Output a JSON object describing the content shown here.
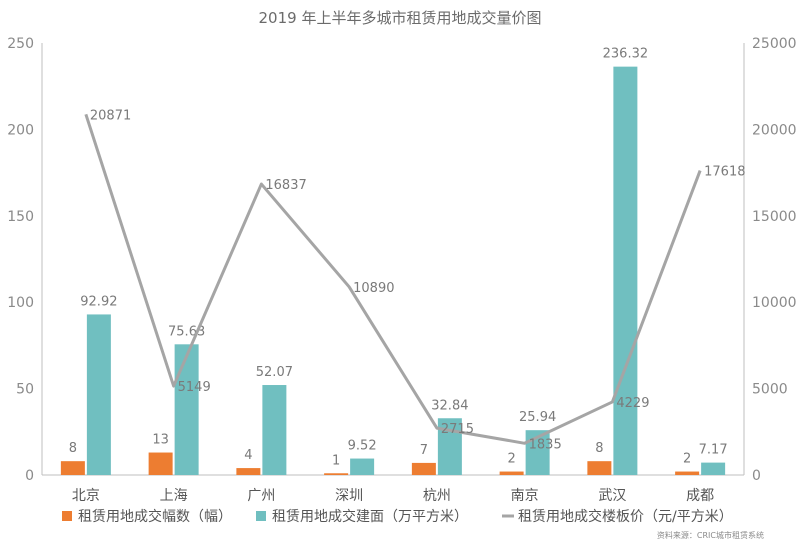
{
  "chart_data": {
    "type": "bar",
    "title": "2019 年上半年多城市租赁用地成交量价图",
    "categories": [
      "北京",
      "上海",
      "广州",
      "深圳",
      "杭州",
      "南京",
      "武汉",
      "成都"
    ],
    "series": [
      {
        "name": "租赁用地成交幅数（幅）",
        "type": "bar",
        "axis": "left",
        "color": "#ed7d31",
        "values": [
          8,
          13,
          4,
          1,
          7,
          2,
          8,
          2
        ]
      },
      {
        "name": "租赁用地成交建面（万平方米）",
        "type": "bar",
        "axis": "left",
        "color": "#70bfc0",
        "values": [
          92.92,
          75.63,
          52.07,
          9.52,
          32.84,
          25.94,
          236.32,
          7.17
        ]
      },
      {
        "name": "租赁用地成交楼板价（元/平方米）",
        "type": "line",
        "axis": "right",
        "color": "#a5a5a5",
        "values": [
          20871,
          5149,
          16837,
          10890,
          2715,
          1835,
          4229,
          17618
        ]
      }
    ],
    "y_left": {
      "min": 0,
      "max": 250,
      "ticks": [
        "0",
        "50",
        "100",
        "150",
        "200",
        "250"
      ]
    },
    "y_right": {
      "min": 0,
      "max": 25000,
      "ticks": [
        "0",
        "5000",
        "10000",
        "15000",
        "20000",
        "25000"
      ]
    },
    "grid": false,
    "legend": "bottom"
  },
  "source_note": "资料来源：CRIC城市租赁系统"
}
